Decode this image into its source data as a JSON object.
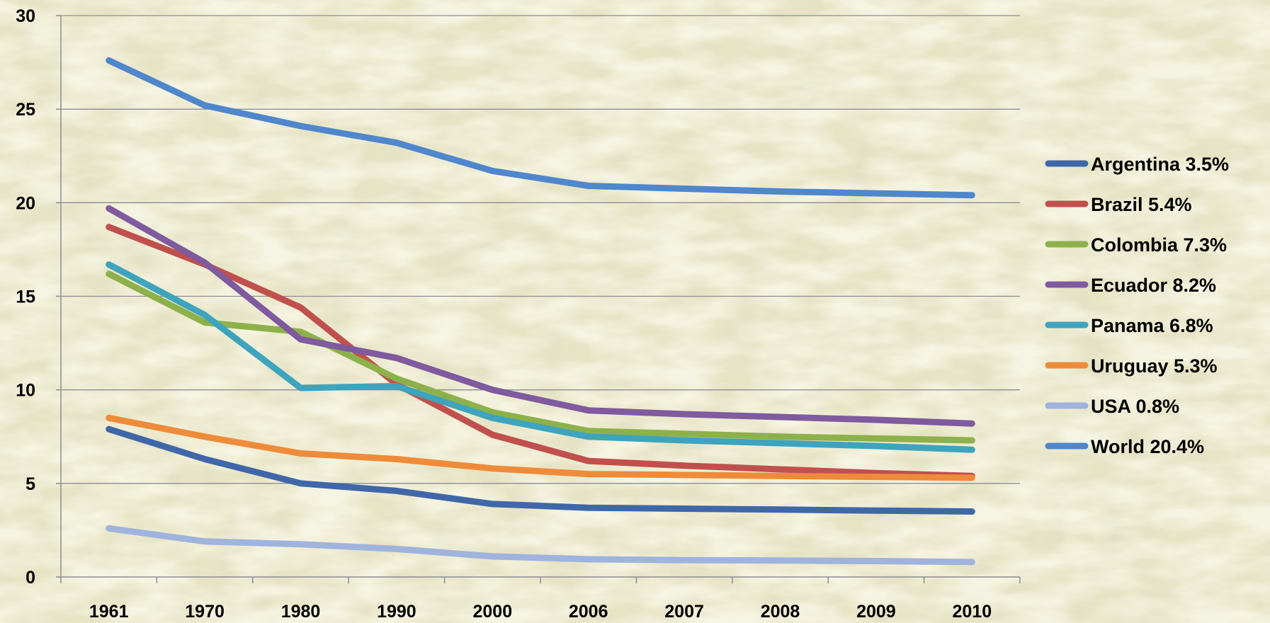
{
  "chart_data": {
    "type": "line",
    "title": "",
    "xlabel": "",
    "ylabel": "",
    "categories": [
      "1961",
      "1970",
      "1980",
      "1990",
      "2000",
      "2006",
      "2007",
      "2008",
      "2009",
      "2010"
    ],
    "y_ticks": [
      "0",
      "5",
      "10",
      "15",
      "20",
      "25",
      "30"
    ],
    "ylim": [
      0,
      30
    ],
    "grid": "horizontal",
    "legend_position": "right",
    "background": "rice grain photo",
    "series": [
      {
        "name": "Argentina 3.5%",
        "color": "#3f67a8",
        "values": [
          7.9,
          6.3,
          5.0,
          4.6,
          3.9,
          3.7,
          3.65,
          3.6,
          3.55,
          3.5
        ]
      },
      {
        "name": "Brazil 5.4%",
        "color": "#c0504d",
        "values": [
          18.7,
          16.7,
          14.4,
          10.3,
          7.6,
          6.2,
          5.95,
          5.75,
          5.55,
          5.4
        ]
      },
      {
        "name": "Colombia 7.3%",
        "color": "#8db14a",
        "values": [
          16.2,
          13.6,
          13.1,
          10.6,
          8.8,
          7.8,
          7.65,
          7.5,
          7.4,
          7.3
        ]
      },
      {
        "name": "Ecuador 8.2%",
        "color": "#7f5a9e",
        "values": [
          19.7,
          16.8,
          12.7,
          11.7,
          10.0,
          8.9,
          8.7,
          8.55,
          8.4,
          8.2
        ]
      },
      {
        "name": "Panama 6.8%",
        "color": "#3ea3bd",
        "values": [
          16.7,
          14.0,
          10.1,
          10.2,
          8.5,
          7.5,
          7.3,
          7.15,
          7.0,
          6.8
        ]
      },
      {
        "name": "Uruguay 5.3%",
        "color": "#ee8b3a",
        "values": [
          8.5,
          7.5,
          6.6,
          6.3,
          5.8,
          5.5,
          5.45,
          5.4,
          5.35,
          5.3
        ]
      },
      {
        "name": "USA 0.8%",
        "color": "#9fb3dc",
        "values": [
          2.6,
          1.9,
          1.75,
          1.5,
          1.1,
          0.95,
          0.9,
          0.88,
          0.85,
          0.8
        ]
      },
      {
        "name": "World 20.4%",
        "color": "#4f86cc",
        "values": [
          27.6,
          25.2,
          24.1,
          23.2,
          21.7,
          20.9,
          20.75,
          20.6,
          20.5,
          20.4
        ]
      }
    ]
  }
}
